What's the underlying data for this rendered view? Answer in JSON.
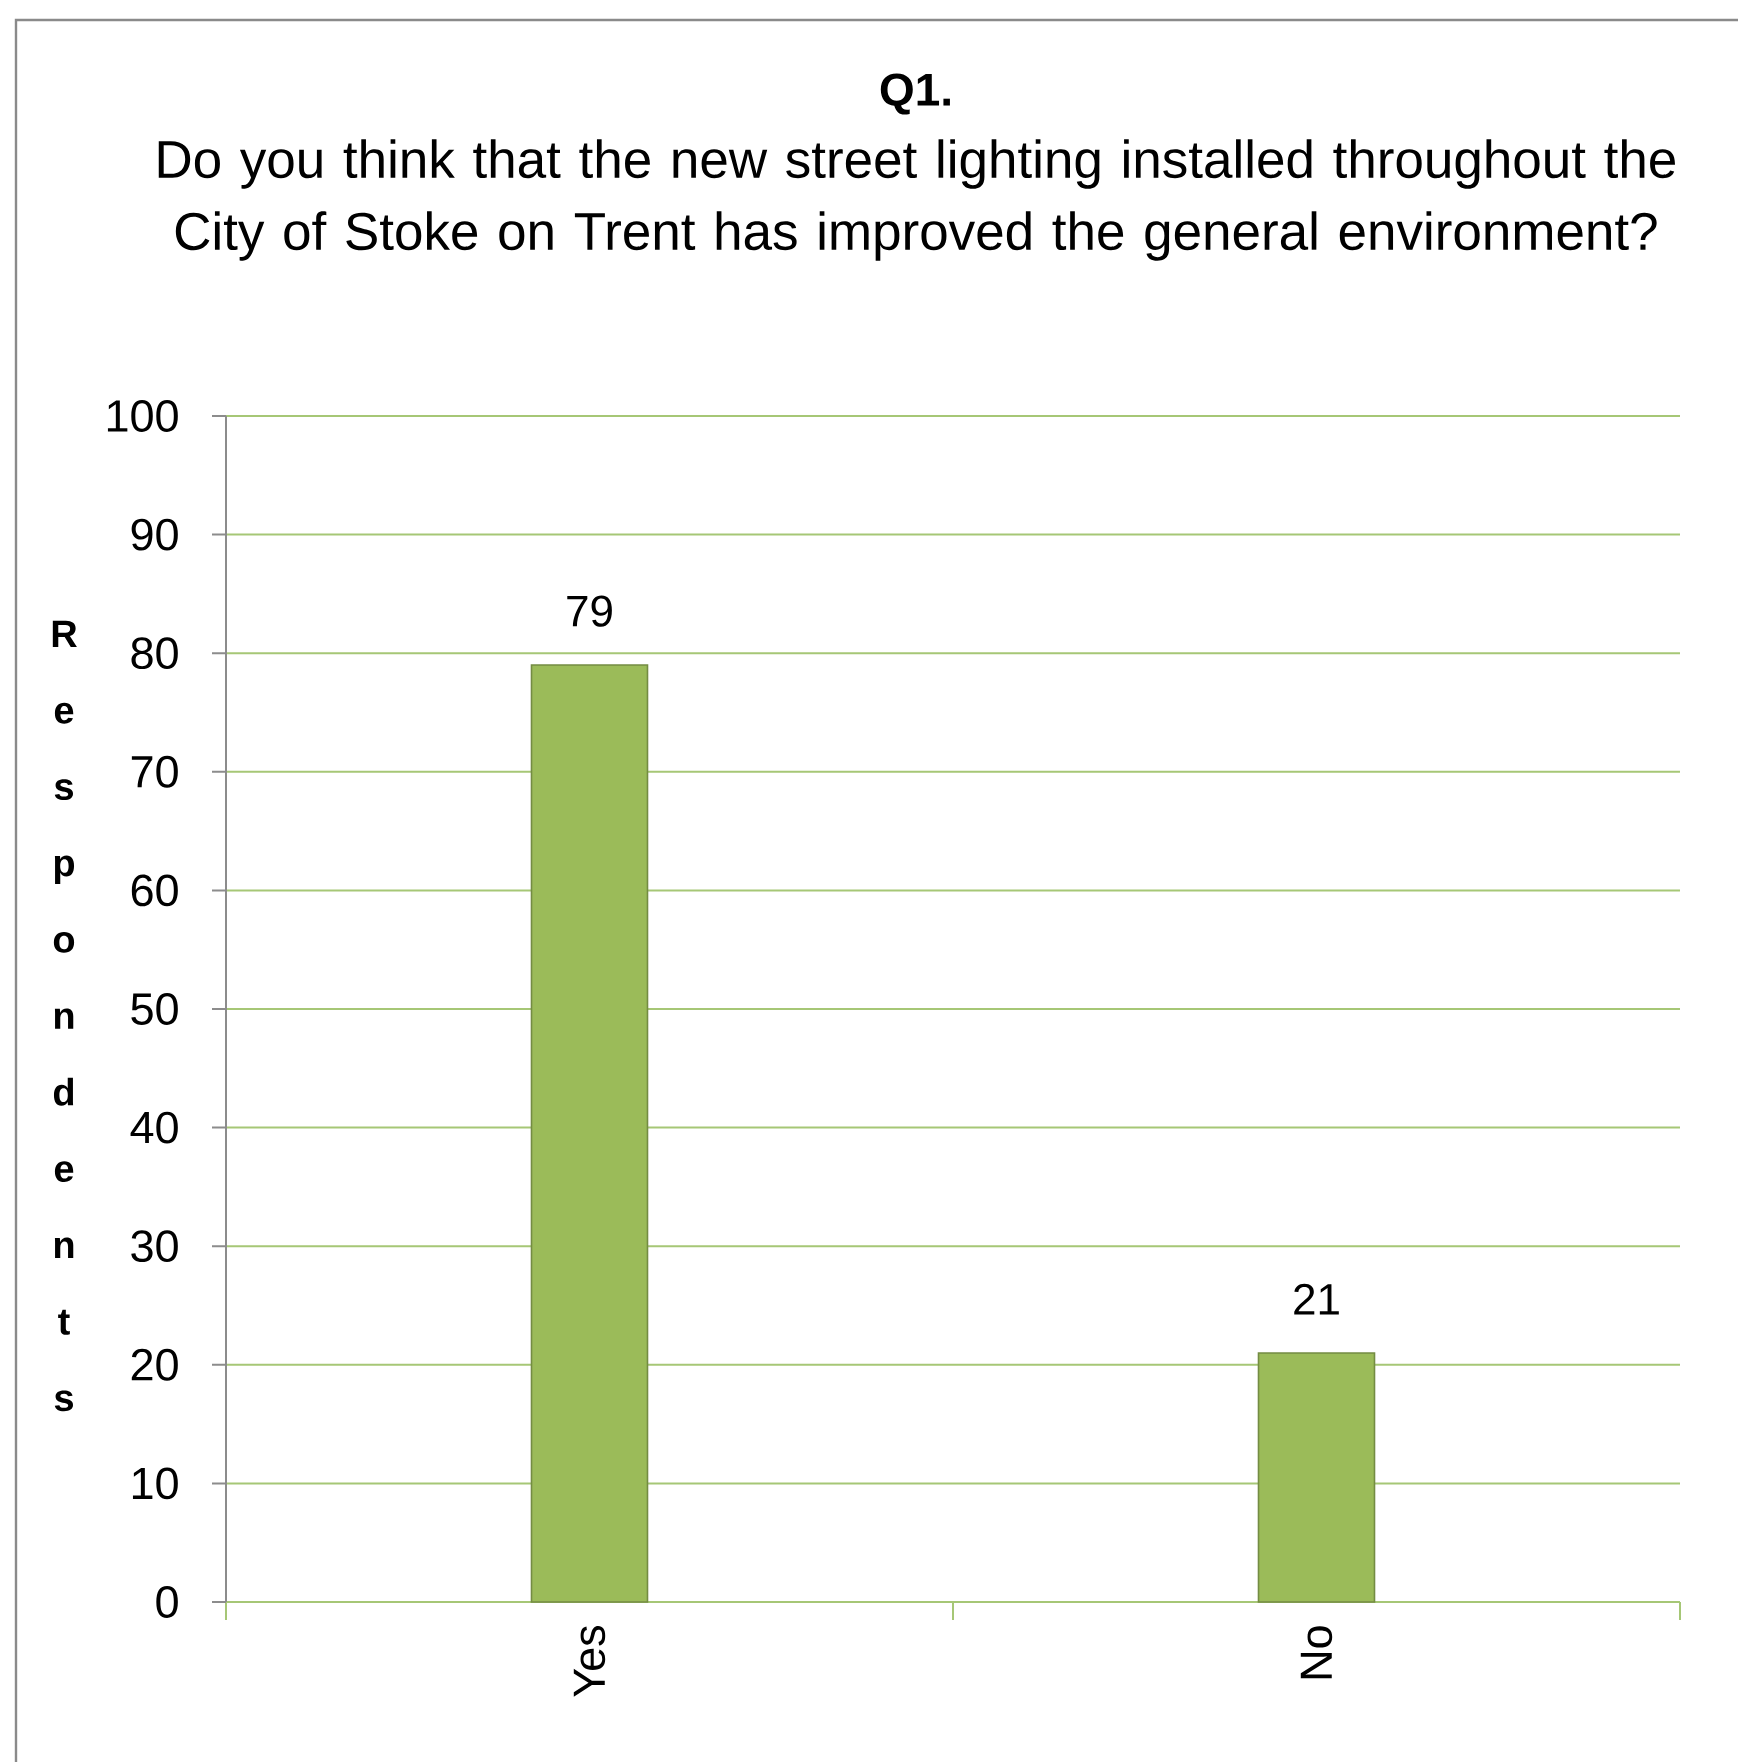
{
  "chart_data": {
    "type": "bar",
    "title": "Q1.",
    "subtitle": "Do you think that the new street lighting installed throughout the City of Stoke on Trent has improved the general environment?",
    "ylabel": "Respondents",
    "categories": [
      "Yes",
      "No"
    ],
    "values": [
      79,
      21
    ],
    "color": "#9bbb59",
    "ylim": [
      0,
      100
    ],
    "yticks": [
      0,
      10,
      20,
      30,
      40,
      50,
      60,
      70,
      80,
      90,
      100
    ],
    "grid": "y",
    "data_labels": true
  }
}
